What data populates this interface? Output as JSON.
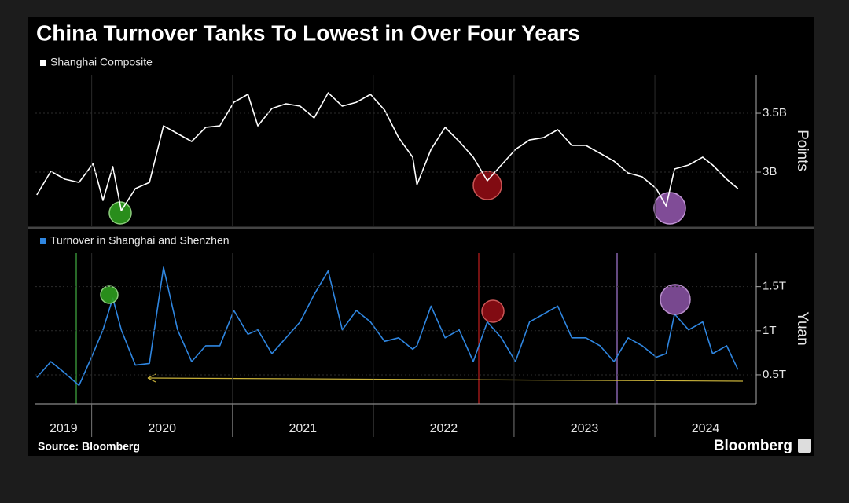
{
  "chart_data": [
    {
      "type": "line",
      "title": "China Turnover Tanks To Lowest in Over Four Years",
      "y_label": "Points",
      "x": [
        2019.61,
        2019.71,
        2019.81,
        2019.91,
        2020.01,
        2020.08,
        2020.15,
        2020.21,
        2020.31,
        2020.41,
        2020.51,
        2020.61,
        2020.71,
        2020.81,
        2020.91,
        2021.01,
        2021.11,
        2021.18,
        2021.28,
        2021.38,
        2021.48,
        2021.58,
        2021.68,
        2021.78,
        2021.88,
        2021.98,
        2022.08,
        2022.18,
        2022.28,
        2022.31,
        2022.41,
        2022.51,
        2022.61,
        2022.71,
        2022.81,
        2022.91,
        2023.01,
        2023.11,
        2023.21,
        2023.31,
        2023.41,
        2023.51,
        2023.61,
        2023.71,
        2023.81,
        2023.91,
        2024.01,
        2024.08,
        2024.14,
        2024.24,
        2024.34,
        2024.41,
        2024.51,
        2024.59
      ],
      "series": [
        {
          "name": "Shanghai Composite",
          "color": "#ffffff",
          "values": [
            2807,
            3007,
            2940,
            2913,
            3073,
            2760,
            3047,
            2673,
            2860,
            2913,
            3393,
            3327,
            3260,
            3380,
            3393,
            3593,
            3660,
            3393,
            3540,
            3580,
            3560,
            3460,
            3673,
            3560,
            3593,
            3660,
            3527,
            3293,
            3127,
            2893,
            3193,
            3380,
            3260,
            3127,
            2927,
            3060,
            3193,
            3273,
            3293,
            3360,
            3227,
            3227,
            3160,
            3093,
            2993,
            2960,
            2860,
            2713,
            3027,
            3060,
            3127,
            3060,
            2940,
            2860
          ]
        }
      ],
      "xlim": [
        2019.6,
        2024.72
      ],
      "ylim": [
        2540,
        3827
      ],
      "yticks": [
        {
          "value": 3000,
          "label": "3B"
        },
        {
          "value": 3500,
          "label": "3.5B"
        }
      ],
      "grid": true
    },
    {
      "type": "line",
      "y_label": "Yuan",
      "source": "Source: Bloomberg",
      "brand": "Bloomberg",
      "x": [
        2019.61,
        2019.71,
        2019.81,
        2019.91,
        2020.01,
        2020.08,
        2020.15,
        2020.21,
        2020.31,
        2020.41,
        2020.51,
        2020.61,
        2020.71,
        2020.81,
        2020.91,
        2021.01,
        2021.11,
        2021.18,
        2021.28,
        2021.38,
        2021.48,
        2021.58,
        2021.68,
        2021.78,
        2021.88,
        2021.98,
        2022.08,
        2022.18,
        2022.28,
        2022.31,
        2022.41,
        2022.51,
        2022.61,
        2022.71,
        2022.81,
        2022.91,
        2023.01,
        2023.11,
        2023.21,
        2023.31,
        2023.41,
        2023.51,
        2023.61,
        2023.71,
        2023.81,
        2023.91,
        2024.01,
        2024.08,
        2024.14,
        2024.24,
        2024.34,
        2024.41,
        2024.51,
        2024.59
      ],
      "series": [
        {
          "name": "Turnover in Shanghai and Shenzhen",
          "color": "#2f86e0",
          "values": [
            0.47,
            0.65,
            0.52,
            0.38,
            0.74,
            1.01,
            1.37,
            1.01,
            0.61,
            0.63,
            1.72,
            1.01,
            0.65,
            0.83,
            0.83,
            1.23,
            0.96,
            1.01,
            0.74,
            0.92,
            1.1,
            1.41,
            1.68,
            1.01,
            1.23,
            1.1,
            0.88,
            0.92,
            0.79,
            0.83,
            1.28,
            0.92,
            1.01,
            0.65,
            1.1,
            0.92,
            0.65,
            1.1,
            1.19,
            1.28,
            0.92,
            0.92,
            0.83,
            0.65,
            0.92,
            0.83,
            0.7,
            0.74,
            1.19,
            1.01,
            1.1,
            0.74,
            0.83,
            0.56
          ]
        }
      ],
      "xlim": [
        2019.6,
        2024.72
      ],
      "ylim": [
        0.17,
        1.88
      ],
      "yticks": [
        {
          "value": 0.5,
          "label": "0.5T"
        },
        {
          "value": 1,
          "label": "1T"
        },
        {
          "value": 1.5,
          "label": "1.5T"
        }
      ],
      "xticks": [
        {
          "value": 2019,
          "label": "2019"
        },
        {
          "value": 2020,
          "label": "2020"
        },
        {
          "value": 2021,
          "label": "2021"
        },
        {
          "value": 2022,
          "label": "2022"
        },
        {
          "value": 2023,
          "label": "2023"
        },
        {
          "value": 2024,
          "label": "2024"
        }
      ],
      "grid": true
    }
  ]
}
